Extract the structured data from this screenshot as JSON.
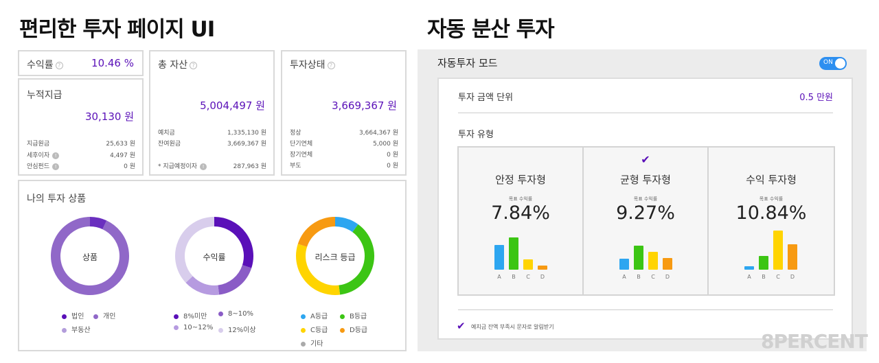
{
  "titles": {
    "left": "편리한 투자 페이지 UI",
    "right": "자동 분산 투자"
  },
  "cards": {
    "yield": {
      "label": "수익률",
      "value": "10.46 %"
    },
    "accum": {
      "label": "누적지급",
      "value": "30,130 원",
      "rows": [
        {
          "k": "지급원금",
          "v": "25,633 원"
        },
        {
          "k": "세후이자",
          "v": "4,497 원"
        },
        {
          "k": "안심펀드",
          "v": "0 원"
        }
      ]
    },
    "assets": {
      "label": "총 자산",
      "value": "5,004,497 원",
      "rows": [
        {
          "k": "예치금",
          "v": "1,335,130 원"
        },
        {
          "k": "잔여원금",
          "v": "3,669,367 원"
        },
        {
          "k": "* 지급예정이자",
          "v": "287,963 원"
        }
      ]
    },
    "status": {
      "label": "투자상태",
      "value": "3,669,367 원",
      "rows": [
        {
          "k": "정상",
          "v": "3,664,367 원"
        },
        {
          "k": "단기연체",
          "v": "5,000 원"
        },
        {
          "k": "장기연체",
          "v": "0 원"
        },
        {
          "k": "부도",
          "v": "0 원"
        }
      ]
    }
  },
  "products": {
    "title": "나의 투자 상품",
    "donuts": [
      {
        "center": "상품",
        "segments": [
          {
            "value": 7,
            "color": "#6a2fbf"
          },
          {
            "value": 93,
            "color": "#9068c8"
          }
        ],
        "legend": [
          {
            "label": "법인",
            "color": "#5a10b8"
          },
          {
            "label": "개인",
            "color": "#9068c8"
          },
          {
            "label": "부동산",
            "color": "#b39ddb"
          }
        ]
      },
      {
        "center": "수익률",
        "segments": [
          {
            "value": 30,
            "color": "#5a10b8"
          },
          {
            "value": 18,
            "color": "#8a5cc6"
          },
          {
            "value": 15,
            "color": "#b69be0"
          },
          {
            "value": 37,
            "color": "#d8cdec"
          }
        ],
        "legend": [
          {
            "label": "8%미만",
            "color": "#5a10b8"
          },
          {
            "label": "8~10%",
            "color": "#8a5cc6"
          },
          {
            "label": "10~12%",
            "color": "#b69be0"
          },
          {
            "label": "12%이상",
            "color": "#d8cdec"
          }
        ]
      },
      {
        "center": "리스크 등급",
        "segments": [
          {
            "value": 10,
            "color": "#2da6f0"
          },
          {
            "value": 38,
            "color": "#3cc514"
          },
          {
            "value": 32,
            "color": "#ffd400"
          },
          {
            "value": 20,
            "color": "#f79a12"
          }
        ],
        "legend": [
          {
            "label": "A등급",
            "color": "#2da6f0"
          },
          {
            "label": "B등급",
            "color": "#3cc514"
          },
          {
            "label": "C등급",
            "color": "#ffd400"
          },
          {
            "label": "D등급",
            "color": "#f79a12"
          },
          {
            "label": "기타",
            "color": "#aaaaaa"
          }
        ]
      }
    ]
  },
  "auto": {
    "mode_label": "자동투자 모드",
    "toggle": "ON",
    "unit_label": "투자 금액 단위",
    "unit_value": "0.5 만원",
    "type_label": "투자 유형",
    "sms_label": "예치금 잔액 부족시 문자로 알림받기",
    "sub_label": "목표 수익률",
    "types": [
      {
        "name": "안정 투자형",
        "pct": "7.84%",
        "selected": false,
        "bars": [
          36,
          47,
          15,
          6
        ]
      },
      {
        "name": "균형 투자형",
        "pct": "9.27%",
        "selected": true,
        "bars": [
          16,
          35,
          26,
          17
        ]
      },
      {
        "name": "수익 투자형",
        "pct": "10.84%",
        "selected": false,
        "bars": [
          5,
          20,
          57,
          37
        ]
      }
    ],
    "bar_labels": [
      "A",
      "B",
      "C",
      "D"
    ],
    "bar_colors": [
      "#2da6f0",
      "#3cc514",
      "#ffd400",
      "#f79a12"
    ]
  },
  "watermark": "8PERCENT"
}
